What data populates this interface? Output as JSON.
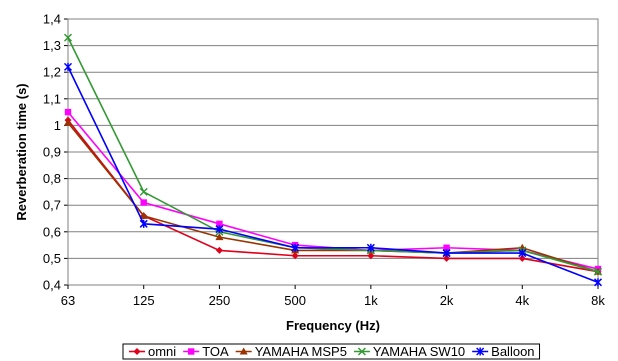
{
  "chart_data": {
    "type": "line",
    "title": "",
    "xlabel": "Frequency (Hz)",
    "ylabel": "Reverberation time (s)",
    "categories": [
      "63",
      "125",
      "250",
      "500",
      "1k",
      "2k",
      "4k",
      "8k"
    ],
    "ylim": [
      0.4,
      1.4
    ],
    "yticks": [
      "0,4",
      "0,5",
      "0,6",
      "0,7",
      "0,8",
      "0,9",
      "1",
      "1,1",
      "1,2",
      "1,3",
      "1,4"
    ],
    "grid": "horizontal",
    "legend_position": "bottom",
    "series": [
      {
        "name": "omni",
        "color": "#e0001b",
        "marker": "diamond",
        "values": [
          1.02,
          0.66,
          0.53,
          0.51,
          0.51,
          0.5,
          0.5,
          0.45
        ]
      },
      {
        "name": "TOA",
        "color": "#ff00ff",
        "marker": "square",
        "values": [
          1.05,
          0.71,
          0.63,
          0.55,
          0.53,
          0.54,
          0.53,
          0.46
        ]
      },
      {
        "name": "YAMAHA MSP5",
        "color": "#993300",
        "marker": "triangle",
        "values": [
          1.01,
          0.66,
          0.58,
          0.53,
          0.53,
          0.52,
          0.54,
          0.45
        ]
      },
      {
        "name": "YAMAHA SW10",
        "color": "#339933",
        "marker": "x",
        "values": [
          1.33,
          0.75,
          0.6,
          0.54,
          0.53,
          0.52,
          0.53,
          0.45
        ]
      },
      {
        "name": "Balloon",
        "color": "#0000ff",
        "marker": "star",
        "values": [
          1.22,
          0.63,
          0.61,
          0.54,
          0.54,
          0.52,
          0.52,
          0.41
        ]
      }
    ]
  }
}
